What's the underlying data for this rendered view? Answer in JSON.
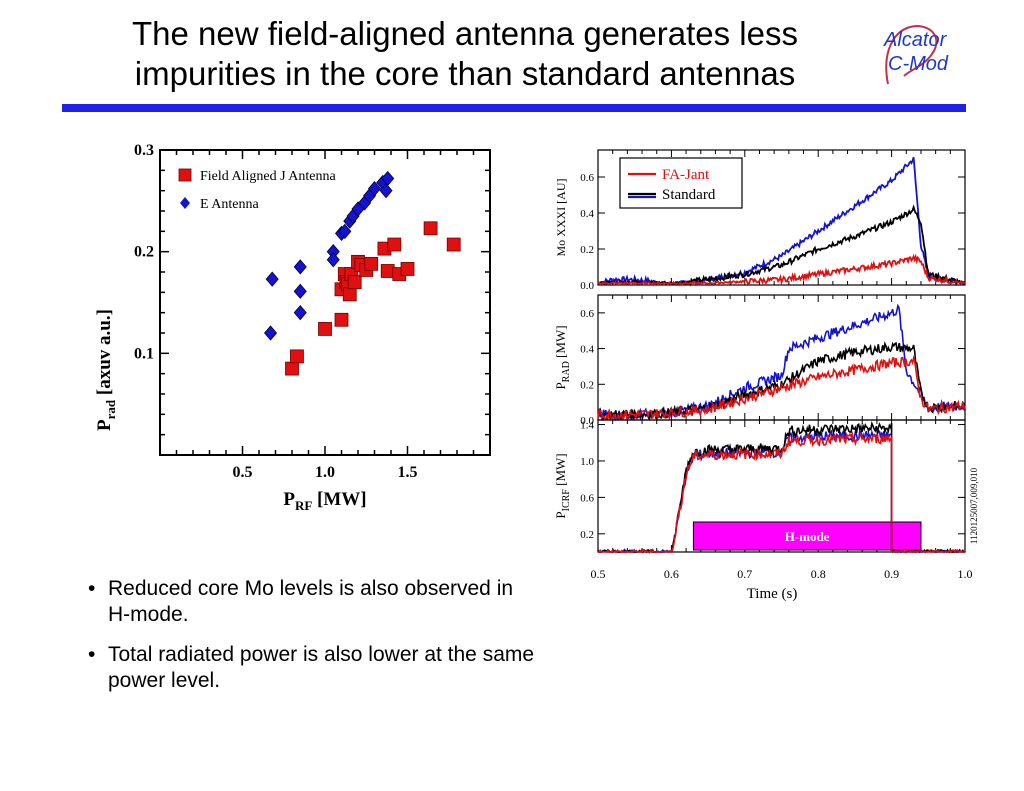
{
  "slide": {
    "title_line1": "The new field-aligned antenna generates less",
    "title_line2": "impurities in the core than standard antennas",
    "logo_line1": "Alcator",
    "logo_line2": "C-Mod",
    "accent_color": "#1e22e6"
  },
  "bullets": [
    "Reduced core Mo levels is also observed in H-mode.",
    "Total radiated power is also lower at the same power level."
  ],
  "chart_data": [
    {
      "type": "scatter",
      "ylabel_main": "P",
      "ylabel_sub": "rad",
      "ylabel_rest": " [axuv a.u.]",
      "xlabel_main": "P",
      "xlabel_sub": "RF",
      "xlabel_rest": " [MW]",
      "xlim": [
        0.0,
        2.0
      ],
      "ylim": [
        0.0,
        0.3
      ],
      "xticks": [
        "0.5",
        "1.0",
        "1.5"
      ],
      "yticks": [
        "0.1",
        "0.2",
        "0.3"
      ],
      "legend_position": "top-left",
      "series": [
        {
          "name": "Field Aligned J Antenna",
          "color": "#e01010",
          "marker": "square",
          "x": [
            0.8,
            0.83,
            1.0,
            1.1,
            1.1,
            1.12,
            1.13,
            1.14,
            1.15,
            1.16,
            1.18,
            1.2,
            1.22,
            1.25,
            1.28,
            1.36,
            1.38,
            1.42,
            1.45,
            1.5,
            1.64,
            1.78
          ],
          "y": [
            0.085,
            0.097,
            0.124,
            0.133,
            0.163,
            0.178,
            0.17,
            0.168,
            0.158,
            0.178,
            0.17,
            0.19,
            0.187,
            0.182,
            0.188,
            0.203,
            0.181,
            0.207,
            0.178,
            0.183,
            0.223,
            0.207
          ]
        },
        {
          "name": "E Antenna",
          "color": "#1414d0",
          "marker": "diamond",
          "x": [
            0.67,
            0.68,
            0.85,
            0.85,
            0.85,
            1.05,
            1.05,
            1.1,
            1.12,
            1.15,
            1.17,
            1.2,
            1.24,
            1.27,
            1.3,
            1.35,
            1.38,
            1.37
          ],
          "y": [
            0.12,
            0.173,
            0.14,
            0.161,
            0.185,
            0.2,
            0.192,
            0.218,
            0.22,
            0.23,
            0.235,
            0.242,
            0.248,
            0.255,
            0.262,
            0.268,
            0.272,
            0.26
          ]
        }
      ]
    },
    {
      "type": "line",
      "panels": [
        {
          "ylabel": "Mo XXXI [AU]",
          "ylim": [
            0.0,
            0.75
          ],
          "yticks": [
            "0.0",
            "0.2",
            "0.4",
            "0.6"
          ],
          "legend_position": "top-left",
          "series": [
            {
              "name": "FA-Jant",
              "color": "#e01010",
              "x": [
                0.5,
                0.55,
                0.6,
                0.65,
                0.7,
                0.75,
                0.8,
                0.85,
                0.9,
                0.93,
                0.94,
                0.95,
                1.0
              ],
              "y": [
                0.01,
                0.01,
                0.01,
                0.01,
                0.02,
                0.03,
                0.06,
                0.09,
                0.12,
                0.15,
                0.13,
                0.04,
                0.01
              ]
            },
            {
              "name": "Standard",
              "color": "#000000",
              "x": [
                0.5,
                0.55,
                0.6,
                0.65,
                0.7,
                0.75,
                0.8,
                0.85,
                0.9,
                0.93,
                0.94,
                0.95,
                1.0
              ],
              "y": [
                0.01,
                0.02,
                0.01,
                0.03,
                0.06,
                0.11,
                0.2,
                0.27,
                0.35,
                0.42,
                0.35,
                0.06,
                0.01
              ]
            },
            {
              "name": "",
              "color": "#1414d0",
              "x": [
                0.5,
                0.52,
                0.55,
                0.6,
                0.65,
                0.7,
                0.75,
                0.8,
                0.85,
                0.9,
                0.92,
                0.93,
                0.94,
                0.95,
                1.0
              ],
              "y": [
                0.01,
                0.03,
                0.03,
                0.01,
                0.03,
                0.07,
                0.16,
                0.3,
                0.44,
                0.58,
                0.66,
                0.7,
                0.22,
                0.05,
                0.01
              ]
            }
          ]
        },
        {
          "ylabel_main": "P",
          "ylabel_sub": "RAD",
          "ylabel_rest": " [MW]",
          "ylim": [
            0.0,
            0.7
          ],
          "yticks": [
            "0.0",
            "0.2",
            "0.4",
            "0.6"
          ],
          "series": [
            {
              "name": "FA-Jant",
              "color": "#e01010",
              "x": [
                0.5,
                0.55,
                0.6,
                0.65,
                0.7,
                0.75,
                0.8,
                0.85,
                0.9,
                0.93,
                0.94,
                0.95,
                1.0
              ],
              "y": [
                0.03,
                0.03,
                0.04,
                0.06,
                0.12,
                0.18,
                0.24,
                0.28,
                0.32,
                0.33,
                0.12,
                0.06,
                0.08
              ]
            },
            {
              "name": "Standard",
              "color": "#000000",
              "x": [
                0.5,
                0.55,
                0.6,
                0.65,
                0.7,
                0.75,
                0.8,
                0.85,
                0.9,
                0.93,
                0.94,
                0.95,
                1.0
              ],
              "y": [
                0.03,
                0.03,
                0.04,
                0.07,
                0.14,
                0.2,
                0.33,
                0.38,
                0.41,
                0.4,
                0.15,
                0.07,
                0.08
              ]
            },
            {
              "name": "",
              "color": "#1414d0",
              "x": [
                0.5,
                0.55,
                0.6,
                0.65,
                0.7,
                0.75,
                0.76,
                0.8,
                0.85,
                0.9,
                0.91,
                0.92,
                0.94,
                0.95,
                1.0
              ],
              "y": [
                0.03,
                0.03,
                0.04,
                0.08,
                0.18,
                0.25,
                0.4,
                0.46,
                0.53,
                0.6,
                0.62,
                0.28,
                0.14,
                0.07,
                0.08
              ]
            }
          ]
        },
        {
          "ylabel_main": "P",
          "ylabel_sub": "ICRF",
          "ylabel_rest": " [MW]",
          "ylim": [
            0.0,
            1.45
          ],
          "yticks": [
            "0.2",
            "0.6",
            "1.0",
            "1.4"
          ],
          "annotation": "H-mode",
          "annotation_color": "#ff00ff",
          "annotation_range": [
            0.63,
            0.94
          ],
          "side_label": "1120125007,009,010",
          "series": [
            {
              "name": "FA-Jant",
              "color": "#e01010",
              "x": [
                0.5,
                0.6,
                0.61,
                0.62,
                0.63,
                0.65,
                0.75,
                0.76,
                0.8,
                0.9,
                0.9,
                1.0
              ],
              "y": [
                0.0,
                0.0,
                0.4,
                0.85,
                1.05,
                1.07,
                1.08,
                1.22,
                1.23,
                1.25,
                0.0,
                0.0
              ]
            },
            {
              "name": "Standard",
              "color": "#000000",
              "x": [
                0.5,
                0.6,
                0.61,
                0.62,
                0.63,
                0.65,
                0.75,
                0.76,
                0.8,
                0.9,
                0.9,
                1.0
              ],
              "y": [
                0.0,
                0.0,
                0.4,
                0.9,
                1.1,
                1.12,
                1.14,
                1.33,
                1.35,
                1.36,
                0.0,
                0.0
              ]
            },
            {
              "name": "",
              "color": "#1414d0",
              "x": [
                0.5,
                0.6,
                0.61,
                0.62,
                0.63,
                0.65,
                0.75,
                0.76,
                0.8,
                0.9,
                0.9,
                1.0
              ],
              "y": [
                0.0,
                0.0,
                0.4,
                0.86,
                1.06,
                1.08,
                1.1,
                1.25,
                1.27,
                1.28,
                0.0,
                0.0
              ]
            }
          ]
        }
      ],
      "xlabel": "Time (s)",
      "xlim": [
        0.5,
        1.0
      ],
      "xticks": [
        "0.5",
        "0.6",
        "0.7",
        "0.8",
        "0.9",
        "1.0"
      ]
    }
  ]
}
